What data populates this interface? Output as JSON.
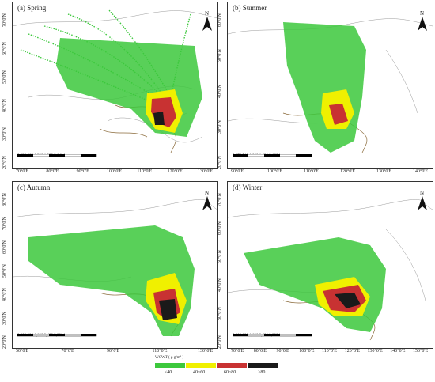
{
  "panels": [
    {
      "id": "a",
      "title": "(a) Spring",
      "lat_labels": [
        "70°0'N",
        "60°0'N",
        "50°0'N",
        "40°0'N",
        "30°0'N",
        "20°0'N"
      ],
      "lon_labels": [
        "70°0'E",
        "80°0'E",
        "90°0'E",
        "100°0'E",
        "110°0'E",
        "120°0'E",
        "130°0'E"
      ],
      "scale_labels": [
        "0",
        "330",
        "660",
        "1,320",
        "1,980",
        "2,640"
      ],
      "scale_unit": "km"
    },
    {
      "id": "b",
      "title": "(b) Summer",
      "lat_labels": [
        "60°0'N",
        "50°0'N",
        "40°0'N",
        "30°0'N",
        "20°0'N"
      ],
      "lon_labels": [
        "90°0'E",
        "100°0'E",
        "110°0'E",
        "120°0'E",
        "130°0'E",
        "140°0'E"
      ],
      "scale_labels": [
        "0",
        "270",
        "540",
        "1,080",
        "1,620",
        "2,160"
      ],
      "scale_unit": "km"
    },
    {
      "id": "c",
      "title": "(c) Autumn",
      "lat_labels": [
        "80°0'N",
        "70°0'N",
        "60°0'N",
        "50°0'N",
        "40°0'N",
        "30°0'N",
        "20°0'N"
      ],
      "lon_labels": [
        "50°0'E",
        "70°0'E",
        "90°0'E",
        "110°0'E",
        "130°0'E"
      ],
      "scale_labels": [
        "0",
        "400",
        "800",
        "1,600",
        "2,400",
        "3,200"
      ],
      "scale_unit": "km"
    },
    {
      "id": "d",
      "title": "(d) Winter",
      "lat_labels": [
        "70°0'N",
        "60°0'N",
        "50°0'N",
        "40°0'N",
        "30°0'N",
        "20°0'N"
      ],
      "lon_labels": [
        "70°0'E",
        "80°0'E",
        "90°0'E",
        "100°0'E",
        "110°0'E",
        "120°0'E",
        "130°0'E",
        "140°0'E",
        "150°0'E"
      ],
      "scale_labels": [
        "0",
        "400",
        "800",
        "1,600",
        "2,400",
        "3,200"
      ],
      "scale_unit": "km"
    }
  ],
  "north_label": "N",
  "legend": {
    "title": "WCWT ( μ g/m³ )",
    "classes": [
      {
        "label": "≤40",
        "color": "#3cc83c"
      },
      {
        "label": "40~60",
        "color": "#f0f000"
      },
      {
        "label": "60~80",
        "color": "#c83232"
      },
      {
        "label": ">80",
        "color": "#1a1a1a"
      }
    ]
  }
}
